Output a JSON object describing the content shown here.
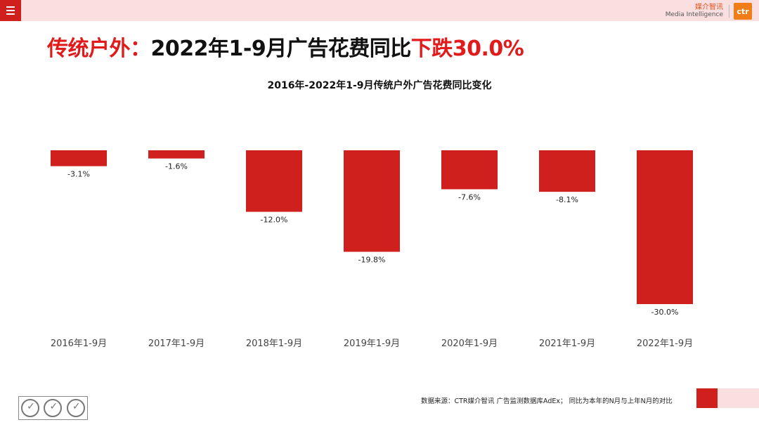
{
  "header": {
    "menu_icon": "hamburger-menu-icon",
    "brand_cn": "媒介智讯",
    "brand_en": "Media Intelligence",
    "brand_logo": "ctr"
  },
  "title": {
    "part1": "传统户外：",
    "part2": "2022年1-9月广告花费同比",
    "part3": "下跌30.0%"
  },
  "chart_data": {
    "type": "bar",
    "title": "2016年-2022年1-9月传统户外广告花费同比变化",
    "categories": [
      "2016年1-9月",
      "2017年1-9月",
      "2018年1-9月",
      "2019年1-9月",
      "2020年1-9月",
      "2021年1-9月",
      "2022年1-9月"
    ],
    "values": [
      -3.1,
      -1.6,
      -12.0,
      -19.8,
      -7.6,
      -8.1,
      -30.0
    ],
    "labels": [
      "-3.1%",
      "-1.6%",
      "-12.0%",
      "-19.8%",
      "-7.6%",
      "-8.1%",
      "-30.0%"
    ],
    "ylim": [
      -30,
      0
    ],
    "bar_color": "#d0201d",
    "grid": false,
    "xlabel": "",
    "ylabel": ""
  },
  "footer": {
    "note": "数据来源：CTR媒介智讯 广告监测数据库AdEx；  同比为本年的N月与上年N月的对比",
    "cert_marks": [
      "sgs-cert-icon",
      "sgs-cert-icon",
      "sgs-cert-icon"
    ]
  },
  "colors": {
    "accent_red": "#d0201d",
    "title_red": "#e11b1b",
    "pink_band": "#f9dfe0",
    "logo_orange": "#f07d18"
  }
}
